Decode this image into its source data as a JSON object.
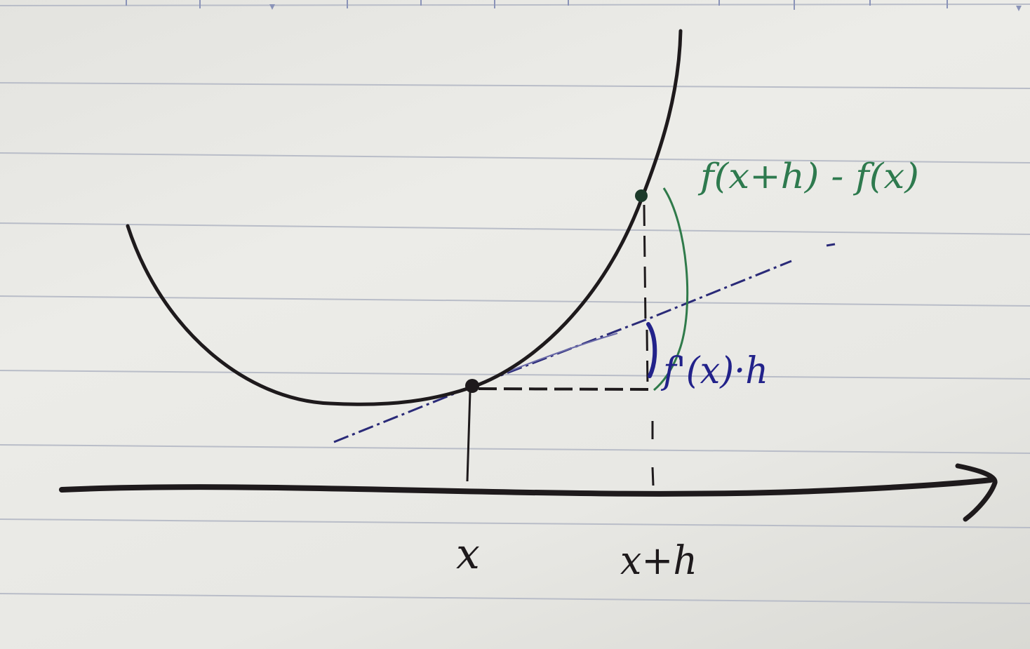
{
  "labels": {
    "x_tick": "x",
    "xh_tick": "x+h",
    "difference": "f(x+h) - f(x)",
    "linear_approx": "f'(x)·h"
  },
  "colors": {
    "paper": "#e8e8e4",
    "rule_line": "#b9bdc8",
    "curve": "#1e1a1c",
    "tangent": "#2a2a78",
    "difference_bracket": "#2f7a4a",
    "difference_text": "#2e7a4e",
    "derivative_text": "#22228a"
  }
}
